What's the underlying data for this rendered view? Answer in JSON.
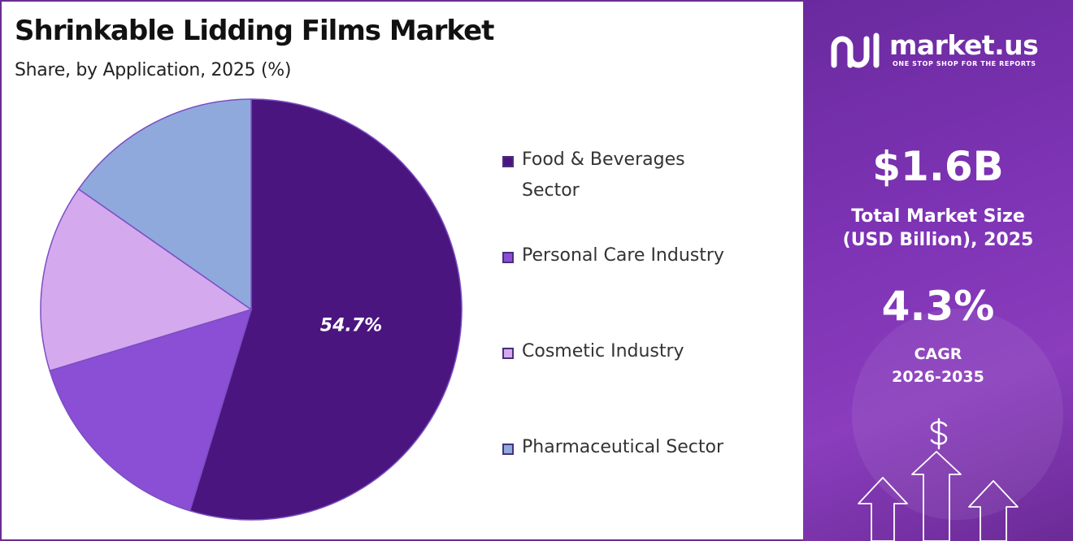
{
  "title": "Shrinkable Lidding Films Market",
  "subtitle": "Share, by Application, 2025 (%)",
  "chart_data": {
    "type": "pie",
    "title": "Shrinkable Lidding Films Market",
    "subtitle": "Share, by Application, 2025 (%)",
    "legend_position": "right",
    "start_angle": "12 o'clock, clockwise",
    "slices": [
      {
        "label": "Food & Beverages Sector",
        "value": 54.7,
        "color": "#4b1580",
        "data_label": "54.7%"
      },
      {
        "label": "Personal Care Industry",
        "value": 15.6,
        "color": "#8a4fd4",
        "data_label": ""
      },
      {
        "label": "Cosmetic Industry",
        "value": 14.4,
        "color": "#d5a9ee",
        "data_label": ""
      },
      {
        "label": "Pharmaceutical Sector",
        "value": 15.3,
        "color": "#8fa9dd",
        "data_label": ""
      }
    ]
  },
  "legend": [
    {
      "line1": "Food & Beverages",
      "line2": "Sector",
      "color": "#4b1580"
    },
    {
      "line1": "Personal Care Industry",
      "line2": "",
      "color": "#8a4fd4"
    },
    {
      "line1": "Cosmetic Industry",
      "line2": "",
      "color": "#d5a9ee"
    },
    {
      "line1": "Pharmaceutical Sector",
      "line2": "",
      "color": "#8fa9dd"
    }
  ],
  "sidebar": {
    "brand_name": "market.us",
    "brand_tagline": "ONE STOP SHOP FOR THE REPORTS",
    "market_size_value": "$1.6B",
    "market_size_label_1": "Total Market Size",
    "market_size_label_2": "(USD Billion), 2025",
    "cagr_value": "4.3%",
    "cagr_label_1": "CAGR",
    "cagr_label_2": "2026-2035",
    "logo_icon": "market-us-logo-icon",
    "decoration_icons": [
      "dollar-sign-icon",
      "up-arrow-icon"
    ]
  },
  "colors": {
    "frame": "#6a2c91",
    "sidebar_bg": "#7d33b4",
    "data_label": "#ffffff"
  }
}
